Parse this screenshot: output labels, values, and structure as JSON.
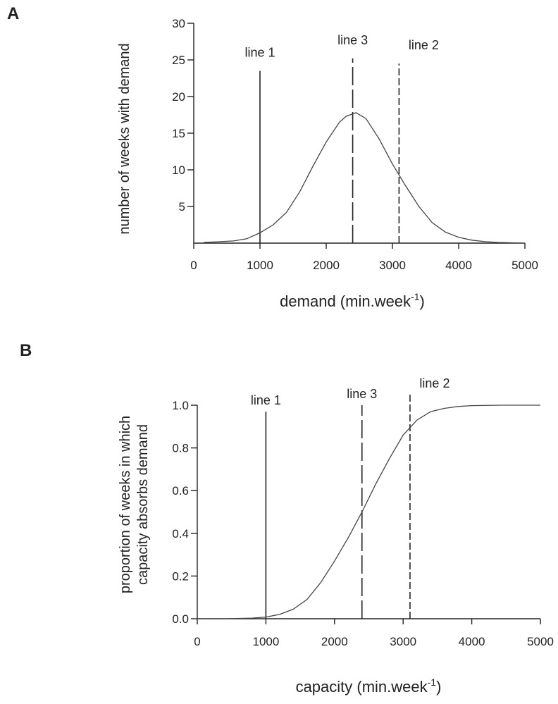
{
  "chart_data": [
    {
      "type": "line",
      "panel": "A",
      "title": "",
      "xlabel": "demand (min.week",
      "xlabel_sup": "-1",
      "xlabel_end": ")",
      "ylabel": "number of weeks with demand",
      "xlim": [
        0,
        5000
      ],
      "ylim": [
        0,
        30
      ],
      "xticks": [
        0,
        1000,
        2000,
        3000,
        4000,
        5000
      ],
      "yticks": [
        5,
        10,
        15,
        20,
        25,
        30
      ],
      "grid": false,
      "series": [
        {
          "x": [
            150,
            400,
            600,
            800,
            1000,
            1200,
            1400,
            1600,
            1800,
            2000,
            2200,
            2300,
            2450,
            2600,
            2800,
            3000,
            3200,
            3400,
            3600,
            3800,
            4000,
            4200,
            4400,
            4600,
            4800,
            5000
          ],
          "y": [
            0.1,
            0.2,
            0.3,
            0.6,
            1.4,
            2.5,
            4.2,
            7.0,
            10.5,
            13.8,
            16.5,
            17.3,
            17.8,
            17.0,
            14.2,
            10.8,
            7.8,
            5.0,
            2.8,
            1.5,
            0.8,
            0.4,
            0.2,
            0.1,
            0.05,
            0.0
          ]
        }
      ],
      "annotations": [
        {
          "label": "line 1",
          "x": 1000,
          "y_top": 23.5,
          "style": "solid"
        },
        {
          "label": "line 3",
          "x": 2400,
          "y_top": 25.2,
          "style": "dashed"
        },
        {
          "label": "line 2",
          "x": 3100,
          "y_top": 24.5,
          "style": "dashed"
        }
      ]
    },
    {
      "type": "line",
      "panel": "B",
      "title": "",
      "xlabel": "capacity (min.week",
      "xlabel_sup": "-1",
      "xlabel_end": ")",
      "ylabel_line1": "proportion of weeks in which",
      "ylabel_line2": "capacity absorbs demand",
      "xlim": [
        0,
        5000
      ],
      "ylim": [
        0,
        1
      ],
      "xticks": [
        0,
        1000,
        2000,
        3000,
        4000,
        5000
      ],
      "yticks": [
        0.0,
        0.2,
        0.4,
        0.6,
        0.8,
        1.0
      ],
      "ytick_labels": [
        "0.0",
        "0.2",
        "0.4",
        "0.6",
        "0.8",
        "1.0"
      ],
      "grid": false,
      "series": [
        {
          "x": [
            0,
            400,
            800,
            1000,
            1200,
            1400,
            1600,
            1800,
            2000,
            2200,
            2400,
            2600,
            2800,
            3000,
            3200,
            3400,
            3600,
            3800,
            4000,
            4400,
            5000
          ],
          "y": [
            0.0,
            0.0,
            0.003,
            0.008,
            0.02,
            0.045,
            0.09,
            0.17,
            0.27,
            0.38,
            0.5,
            0.63,
            0.75,
            0.86,
            0.93,
            0.97,
            0.985,
            0.994,
            0.998,
            1.0,
            1.0
          ]
        }
      ],
      "annotations": [
        {
          "label": "line 1",
          "x": 1000,
          "y_top": 0.97,
          "style": "solid"
        },
        {
          "label": "line 3",
          "x": 2400,
          "y_top": 1.0,
          "style": "dashed"
        },
        {
          "label": "line 2",
          "x": 3100,
          "y_top": 1.05,
          "style": "dashed"
        }
      ]
    }
  ]
}
